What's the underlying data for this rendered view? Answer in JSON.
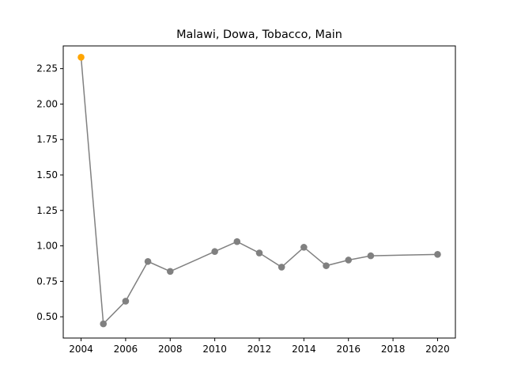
{
  "chart_data": {
    "type": "line",
    "title": "Malawi, Dowa, Tobacco, Main",
    "xlabel": "",
    "ylabel": "",
    "xlim": [
      2003.2,
      2020.8
    ],
    "ylim": [
      0.35,
      2.41
    ],
    "x_ticks": [
      2004,
      2006,
      2008,
      2010,
      2012,
      2014,
      2016,
      2018,
      2020
    ],
    "y_ticks": [
      0.5,
      0.75,
      1.0,
      1.25,
      1.5,
      1.75,
      2.0,
      2.25
    ],
    "grid": false,
    "line_color": "#808080",
    "highlight_color": "#FFA500",
    "series": [
      {
        "x": [
          2004,
          2005,
          2006,
          2007,
          2008,
          2010,
          2011,
          2012,
          2013,
          2014,
          2015,
          2016,
          2017,
          2020
        ],
        "y": [
          2.33,
          0.45,
          0.61,
          0.89,
          0.82,
          0.96,
          1.03,
          0.95,
          0.85,
          0.99,
          0.86,
          0.9,
          0.93,
          0.94
        ],
        "highlight_index": 0
      }
    ]
  }
}
